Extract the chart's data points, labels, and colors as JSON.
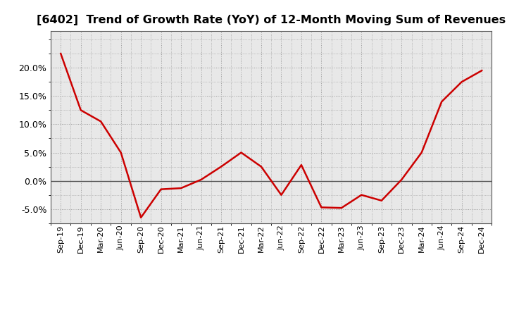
{
  "title": "[6402]  Trend of Growth Rate (YoY) of 12-Month Moving Sum of Revenues",
  "labels": [
    "Sep-19",
    "Dec-19",
    "Mar-20",
    "Jun-20",
    "Sep-20",
    "Dec-20",
    "Mar-21",
    "Jun-21",
    "Sep-21",
    "Dec-21",
    "Mar-22",
    "Jun-22",
    "Sep-22",
    "Dec-22",
    "Mar-23",
    "Jun-23",
    "Sep-23",
    "Dec-23",
    "Mar-24",
    "Jun-24",
    "Sep-24",
    "Dec-24"
  ],
  "values": [
    0.225,
    0.125,
    0.105,
    0.05,
    -0.065,
    -0.015,
    -0.013,
    0.002,
    0.025,
    0.05,
    0.025,
    -0.025,
    0.028,
    -0.047,
    -0.048,
    -0.025,
    -0.035,
    0.002,
    0.05,
    0.14,
    0.175,
    0.195
  ],
  "line_color": "#cc0000",
  "background_color": "#ffffff",
  "plot_bg_color": "#e8e8e8",
  "grid_color": "#999999",
  "zero_line_color": "#555555",
  "title_fontsize": 11.5,
  "ylim": [
    -0.075,
    0.265
  ],
  "yticks": [
    -0.05,
    0.0,
    0.05,
    0.1,
    0.15,
    0.2
  ]
}
